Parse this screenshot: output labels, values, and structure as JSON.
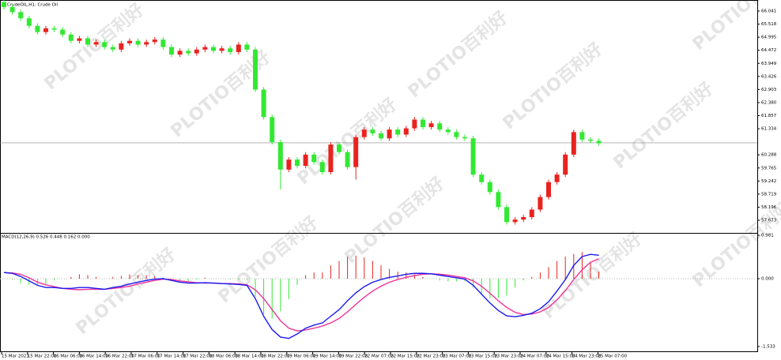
{
  "chart_data": [
    {
      "type": "candlestick",
      "title": "CrudeOIL,H1:  Crude Oil",
      "up_color": "#e8231f",
      "down_color": "#33e833",
      "open": [
        66.4,
        66.2,
        66.0,
        65.75,
        65.45,
        65.2,
        65.35,
        65.3,
        65.1,
        64.85,
        64.95,
        64.7,
        64.8,
        64.6,
        64.5,
        64.75,
        64.85,
        64.7,
        64.8,
        64.9,
        64.6,
        64.3,
        64.45,
        64.35,
        64.5,
        64.6,
        64.45,
        64.55,
        64.4,
        64.7,
        64.5,
        62.9,
        61.8,
        60.8,
        59.7,
        60.1,
        59.85,
        60.3,
        60.0,
        59.6,
        60.7,
        60.4,
        59.8,
        61.0,
        61.3,
        61.15,
        60.95,
        61.3,
        61.1,
        61.35,
        61.7,
        61.4,
        61.55,
        61.3,
        61.2,
        61.0,
        60.95,
        59.5,
        59.2,
        58.8,
        58.2,
        57.6,
        57.7,
        57.8,
        58.1,
        58.6,
        59.2,
        59.5,
        60.3,
        61.2,
        60.9,
        60.85
      ],
      "high": [
        66.5,
        66.3,
        66.1,
        65.85,
        65.55,
        65.45,
        65.45,
        65.4,
        65.2,
        65.05,
        65.05,
        64.9,
        64.9,
        64.7,
        64.85,
        64.95,
        64.95,
        64.9,
        65.0,
        65.0,
        64.7,
        64.55,
        64.55,
        64.6,
        64.7,
        64.7,
        64.65,
        64.65,
        64.8,
        64.8,
        64.6,
        63.0,
        61.9,
        60.9,
        60.2,
        60.2,
        60.4,
        60.4,
        60.1,
        60.8,
        60.8,
        60.5,
        61.1,
        61.4,
        61.4,
        61.25,
        61.4,
        61.4,
        61.45,
        61.8,
        61.8,
        61.65,
        61.65,
        61.4,
        61.3,
        61.1,
        61.05,
        59.6,
        59.3,
        58.9,
        58.3,
        57.8,
        57.9,
        58.2,
        58.7,
        59.3,
        59.6,
        60.4,
        61.3,
        61.3,
        61.0,
        60.95
      ],
      "low": [
        66.1,
        65.9,
        65.65,
        65.35,
        65.1,
        65.1,
        65.2,
        65.0,
        64.75,
        64.75,
        64.6,
        64.6,
        64.5,
        64.4,
        64.4,
        64.65,
        64.6,
        64.6,
        64.7,
        64.5,
        64.2,
        64.2,
        64.25,
        64.25,
        64.4,
        64.35,
        64.35,
        64.3,
        64.3,
        64.4,
        62.8,
        61.7,
        60.7,
        58.9,
        59.6,
        59.75,
        59.75,
        59.9,
        59.5,
        59.5,
        60.3,
        59.7,
        59.3,
        60.9,
        61.05,
        60.85,
        60.85,
        61.0,
        61.0,
        61.25,
        61.3,
        61.3,
        61.2,
        61.1,
        60.9,
        60.85,
        59.4,
        59.1,
        58.7,
        58.1,
        57.5,
        57.5,
        57.6,
        57.7,
        58.0,
        58.5,
        59.1,
        59.4,
        60.2,
        60.8,
        60.75,
        60.65
      ],
      "close": [
        66.2,
        66.0,
        65.75,
        65.45,
        65.2,
        65.35,
        65.3,
        65.1,
        64.85,
        64.95,
        64.7,
        64.8,
        64.6,
        64.5,
        64.75,
        64.85,
        64.7,
        64.8,
        64.9,
        64.6,
        64.3,
        64.45,
        64.35,
        64.5,
        64.6,
        64.45,
        64.55,
        64.4,
        64.7,
        64.5,
        62.9,
        61.8,
        60.8,
        59.7,
        60.1,
        59.85,
        60.3,
        60.0,
        59.6,
        60.7,
        60.4,
        59.8,
        61.0,
        61.3,
        61.15,
        60.95,
        61.3,
        61.1,
        61.35,
        61.7,
        61.4,
        61.55,
        61.3,
        61.2,
        61.0,
        60.95,
        59.5,
        59.2,
        58.8,
        58.2,
        57.6,
        57.7,
        57.8,
        58.1,
        58.6,
        59.2,
        59.5,
        60.3,
        61.2,
        60.9,
        60.85,
        60.75
      ],
      "price_line": 60.77,
      "ylim": [
        57.168,
        66.483
      ],
      "yticks": [
        66.041,
        65.518,
        64.995,
        64.472,
        63.949,
        63.426,
        62.903,
        {
          "value": 62.38,
          "label": "62.380"
        },
        61.857,
        61.334,
        60.288,
        59.765,
        59.242,
        58.719,
        58.196,
        57.673
      ]
    },
    {
      "type": "macd",
      "title": "MACD(12,26,9) 0.526 0.448 0.162 0.000",
      "histogram": {
        "up_color": "#e8231f",
        "down_color": "#33e833",
        "values": [
          0,
          -0.02,
          -0.1,
          -0.14,
          -0.14,
          -0.12,
          -0.04,
          0,
          0.04,
          0.1,
          0.08,
          0.04,
          0,
          0.04,
          0.06,
          0.1,
          0.08,
          0.08,
          0.06,
          0.02,
          -0.04,
          -0.06,
          -0.06,
          -0.02,
          0.02,
          0,
          0,
          -0.02,
          -0.02,
          -0.02,
          -0.4,
          -0.8,
          -0.9,
          -0.74,
          -0.46,
          -0.14,
          0.08,
          0.14,
          0.14,
          0.3,
          0.4,
          0.5,
          0.52,
          0.48,
          0.4,
          0.3,
          0.22,
          0.16,
          0.14,
          0.1,
          0.04,
          0,
          -0.04,
          -0.06,
          -0.06,
          -0.06,
          -0.2,
          -0.36,
          -0.44,
          -0.44,
          -0.38,
          -0.2,
          -0.04,
          0.04,
          0.14,
          0.26,
          0.4,
          0.5,
          0.56,
          0.6,
          0.36,
          0.16
        ]
      },
      "macd_line": {
        "color": "#1a1aee",
        "values": [
          0.14,
          0.12,
          0.05,
          -0.05,
          -0.15,
          -0.2,
          -0.2,
          -0.22,
          -0.22,
          -0.2,
          -0.2,
          -0.22,
          -0.24,
          -0.2,
          -0.17,
          -0.12,
          -0.08,
          -0.04,
          -0.01,
          0.0,
          -0.04,
          -0.08,
          -0.1,
          -0.1,
          -0.09,
          -0.1,
          -0.11,
          -0.12,
          -0.13,
          -0.15,
          -0.45,
          -0.85,
          -1.15,
          -1.32,
          -1.35,
          -1.25,
          -1.12,
          -1.05,
          -1.0,
          -0.85,
          -0.7,
          -0.5,
          -0.32,
          -0.18,
          -0.08,
          -0.02,
          0.03,
          0.06,
          0.1,
          0.12,
          0.12,
          0.11,
          0.08,
          0.05,
          0.02,
          -0.01,
          -0.15,
          -0.35,
          -0.55,
          -0.72,
          -0.84,
          -0.86,
          -0.83,
          -0.78,
          -0.68,
          -0.52,
          -0.28,
          -0.02,
          0.3,
          0.5,
          0.55,
          0.53
        ]
      },
      "signal_line": {
        "color": "#ee3399",
        "values": [
          0.14,
          0.13,
          0.1,
          0.02,
          -0.08,
          -0.14,
          -0.18,
          -0.22,
          -0.24,
          -0.25,
          -0.24,
          -0.24,
          -0.24,
          -0.22,
          -0.2,
          -0.17,
          -0.12,
          -0.08,
          -0.04,
          -0.01,
          -0.02,
          -0.05,
          -0.07,
          -0.09,
          -0.1,
          -0.1,
          -0.11,
          -0.11,
          -0.12,
          -0.14,
          -0.25,
          -0.45,
          -0.7,
          -0.95,
          -1.12,
          -1.18,
          -1.16,
          -1.12,
          -1.07,
          -1.0,
          -0.9,
          -0.75,
          -0.58,
          -0.42,
          -0.28,
          -0.17,
          -0.08,
          -0.02,
          0.03,
          0.07,
          0.1,
          0.11,
          0.1,
          0.08,
          0.05,
          0.02,
          -0.05,
          -0.17,
          -0.33,
          -0.5,
          -0.65,
          -0.76,
          -0.81,
          -0.8,
          -0.75,
          -0.65,
          -0.48,
          -0.27,
          -0.02,
          0.2,
          0.37,
          0.45
        ]
      },
      "ylim": [
        -1.66,
        1.017
      ],
      "yticks": [
        0.981,
        {
          "value": 0,
          "label": "0.000"
        },
        -1.533
      ]
    }
  ],
  "time_labels": [
    "15 Mar 2021",
    "15 Mar 22:00",
    "16 Mar 06:00",
    "16 Mar 14:00",
    "16 Mar 22:00",
    "17 Mar 06:00",
    "17 Mar 14:00",
    "17 Mar 22:00",
    "18 Mar 06:00",
    "18 Mar 14:00",
    "18 Mar 22:00",
    "19 Mar 06:00",
    "19 Mar 14:00",
    "19 Mar 22:00",
    "22 Mar 07:00",
    "22 Mar 15:00",
    "22 Mar 23:00",
    "23 Mar 07:00",
    "23 Mar 15:00",
    "23 Mar 23:00",
    "24 Mar 07:00",
    "24 Mar 15:00",
    "24 Mar 23:00",
    "25 Mar 07:00"
  ],
  "watermark_brand": "PLOTIO",
  "watermark_text": "百利好"
}
